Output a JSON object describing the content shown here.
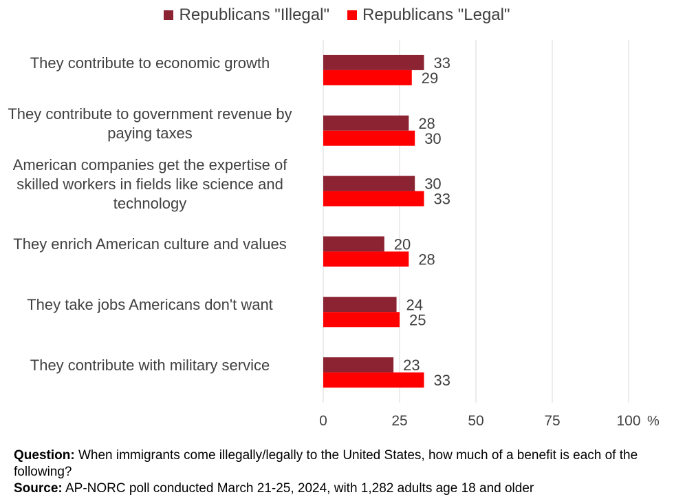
{
  "colors": {
    "illegal": "#8B2332",
    "legal": "#FF0000",
    "grid": "#d9d9d9",
    "text": "#404040"
  },
  "chart_data": {
    "type": "bar",
    "orientation": "horizontal",
    "categories": [
      "They contribute to economic growth",
      "They contribute to government revenue by paying taxes",
      "American companies get the expertise of skilled workers in fields like science and technology",
      "They enrich American culture and values",
      "They take jobs Americans don't want",
      "They contribute with military service"
    ],
    "category_lines": [
      [
        "They contribute to economic growth"
      ],
      [
        "They contribute to government revenue by",
        "paying taxes"
      ],
      [
        "American companies get the expertise of",
        "skilled workers in fields like science and",
        "technology"
      ],
      [
        "They enrich American culture and values"
      ],
      [
        "They take jobs Americans don't want"
      ],
      [
        "They contribute with military service"
      ]
    ],
    "series": [
      {
        "name": "Republicans \"Illegal\"",
        "values": [
          33,
          28,
          30,
          20,
          24,
          23
        ]
      },
      {
        "name": "Republicans \"Legal\"",
        "values": [
          29,
          30,
          33,
          28,
          25,
          33
        ]
      }
    ],
    "xticks": [
      "0",
      "25",
      "50",
      "75",
      "100"
    ],
    "xlim": [
      0,
      100
    ],
    "unit": "%",
    "grid": true,
    "legend_position": "top"
  },
  "footer": {
    "question_label": "Question:",
    "question_text": " When immigrants come illegally/legally to the United States, how much of a benefit is each of the following?",
    "source_label": "Source:",
    "source_text": " AP-NORC poll conducted March 21-25, 2024, with 1,282 adults age 18 and older"
  }
}
